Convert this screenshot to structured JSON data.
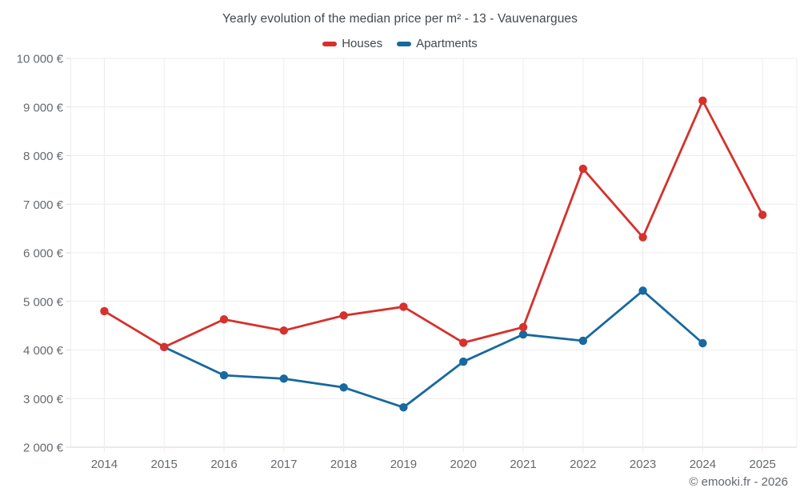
{
  "header": {
    "title": "Yearly evolution of the median price per m² - 13 - Vauvenargues",
    "legend": [
      {
        "label": "Houses",
        "color": "#d5312d"
      },
      {
        "label": "Apartments",
        "color": "#17699e"
      }
    ]
  },
  "footer": {
    "copyright": "© emooki.fr - 2026"
  },
  "colors": {
    "houses": "#d5312d",
    "apartments": "#17699e",
    "gridline": "#ececec",
    "axis_line": "#d4d4d4",
    "tick": "#d9d9d9",
    "axis_text": "#666a6e",
    "title_text": "#44484c"
  },
  "chart_data": {
    "type": "line",
    "title": "Yearly evolution of the median price per m² - 13 - Vauvenargues",
    "xlabel": "",
    "ylabel": "",
    "categories": [
      "2014",
      "2015",
      "2016",
      "2017",
      "2018",
      "2019",
      "2020",
      "2021",
      "2022",
      "2023",
      "2024",
      "2025"
    ],
    "series": [
      {
        "name": "Houses",
        "color": "#d5312d",
        "values": [
          4800,
          4060,
          4630,
          4400,
          4710,
          4890,
          4150,
          4470,
          7730,
          6320,
          9130,
          6780
        ]
      },
      {
        "name": "Apartments",
        "color": "#17699e",
        "values": [
          null,
          4060,
          3480,
          3410,
          3230,
          2820,
          3760,
          4320,
          4190,
          5220,
          4140,
          null
        ]
      }
    ],
    "ylim": [
      2000,
      10000
    ],
    "y_ticks": [
      {
        "value": 10000,
        "label": "10 000 €"
      },
      {
        "value": 9000,
        "label": "9 000 €"
      },
      {
        "value": 8000,
        "label": "8 000 €"
      },
      {
        "value": 7000,
        "label": "7 000 €"
      },
      {
        "value": 6000,
        "label": "6 000 €"
      },
      {
        "value": 5000,
        "label": "5 000 €"
      },
      {
        "value": 4000,
        "label": "4 000 €"
      },
      {
        "value": 3000,
        "label": "3 000 €"
      },
      {
        "value": 2000,
        "label": "2 000 €"
      }
    ],
    "grid": true,
    "legend_position": "top"
  }
}
